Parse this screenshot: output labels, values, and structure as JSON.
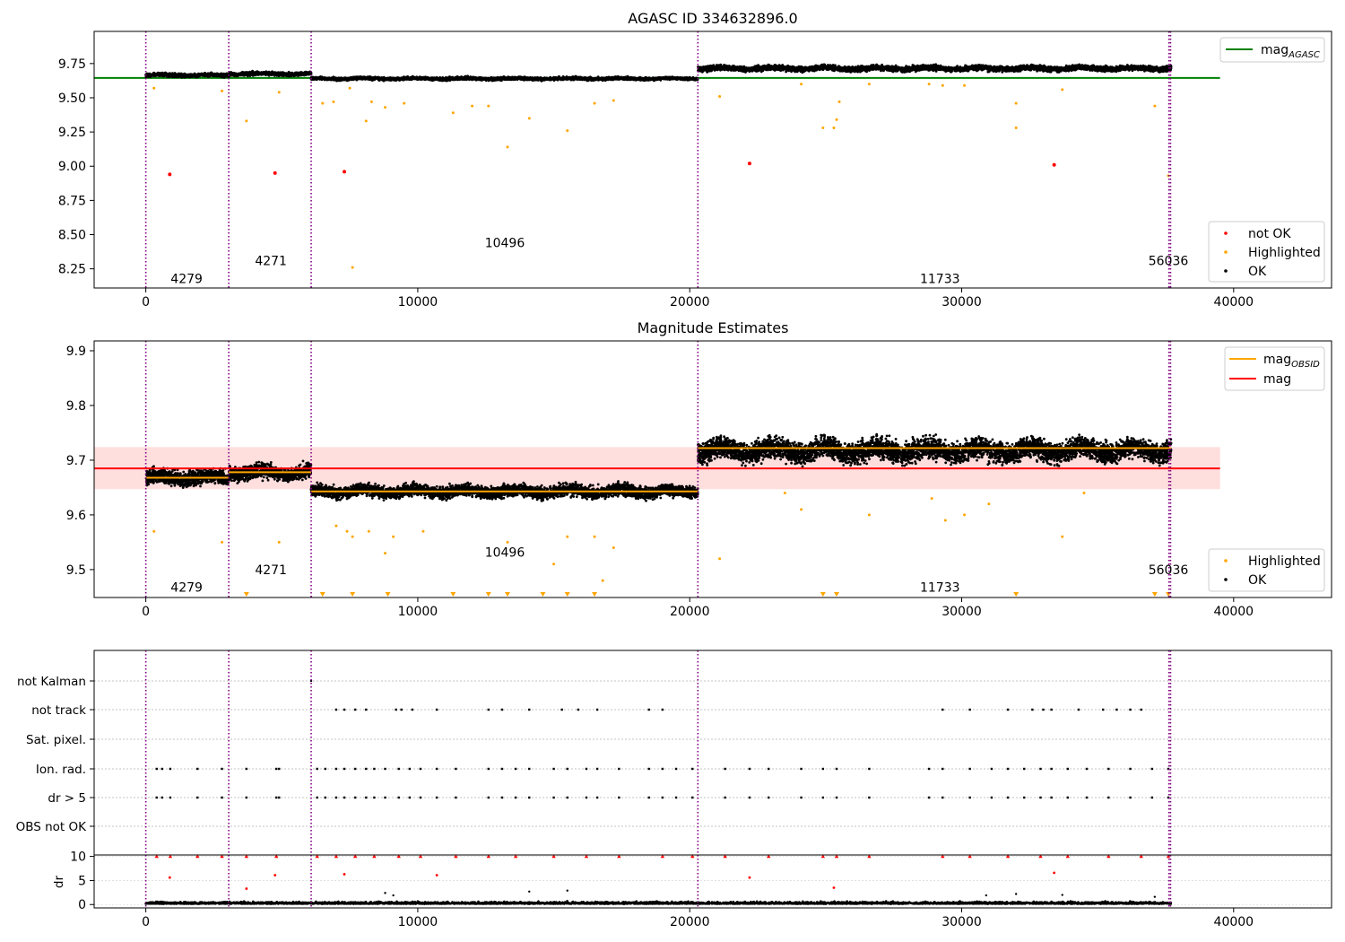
{
  "chart_data": [
    {
      "type": "scatter",
      "title": "AGASC ID 334632896.0",
      "xlim": [
        -1900,
        43600
      ],
      "ylim": [
        8.11,
        9.985
      ],
      "x_ticks": [
        0,
        10000,
        20000,
        30000,
        40000
      ],
      "y_ticks": [
        "8.25",
        "8.50",
        "8.75",
        "9.00",
        "9.25",
        "9.50",
        "9.75"
      ],
      "obs_boundaries": [
        0,
        3050,
        6080,
        20300,
        37620,
        37680
      ],
      "obs_labels": [
        {
          "label": "4279",
          "x": 1500,
          "y": 8.18
        },
        {
          "label": "4271",
          "x": 4600,
          "y": 8.31
        },
        {
          "label": "10496",
          "x": 13200,
          "y": 8.44
        },
        {
          "label": "11733",
          "x": 29200,
          "y": 8.18
        },
        {
          "label": "56036",
          "x": 37600,
          "y": 8.31
        }
      ],
      "lines": [
        {
          "name": "mag_AGASC",
          "color": "#008000",
          "x": [
            -1900,
            39500
          ],
          "y": 9.645
        }
      ],
      "segments": [
        {
          "x0": 0,
          "x1": 3050,
          "level": 9.665,
          "spread": 0.012
        },
        {
          "x0": 3050,
          "x1": 6080,
          "level": 9.675,
          "spread": 0.012
        },
        {
          "x0": 6080,
          "x1": 20300,
          "level": 9.64,
          "spread": 0.01
        },
        {
          "x0": 20300,
          "x1": 37700,
          "level": 9.715,
          "spread": 0.018
        }
      ],
      "not_ok_points": [
        [
          880,
          8.94
        ],
        [
          4750,
          8.95
        ],
        [
          7300,
          8.96
        ],
        [
          22200,
          9.02
        ],
        [
          33400,
          9.01
        ]
      ],
      "highlighted_outliers": [
        [
          300,
          9.57
        ],
        [
          2800,
          9.55
        ],
        [
          3700,
          9.33
        ],
        [
          4900,
          9.54
        ],
        [
          6500,
          9.46
        ],
        [
          6900,
          9.47
        ],
        [
          7500,
          9.57
        ],
        [
          8100,
          9.33
        ],
        [
          8300,
          9.47
        ],
        [
          8800,
          9.43
        ],
        [
          9500,
          9.46
        ],
        [
          11300,
          9.39
        ],
        [
          12000,
          9.44
        ],
        [
          12600,
          9.44
        ],
        [
          13300,
          9.14
        ],
        [
          14100,
          9.35
        ],
        [
          15500,
          9.26
        ],
        [
          16500,
          9.46
        ],
        [
          17200,
          9.48
        ],
        [
          7600,
          8.26
        ],
        [
          21100,
          9.51
        ],
        [
          24100,
          9.6
        ],
        [
          24900,
          9.28
        ],
        [
          25300,
          9.28
        ],
        [
          25400,
          9.34
        ],
        [
          25500,
          9.47
        ],
        [
          26600,
          9.6
        ],
        [
          28800,
          9.6
        ],
        [
          29300,
          9.59
        ],
        [
          30100,
          9.59
        ],
        [
          32000,
          9.46
        ],
        [
          32000,
          9.28
        ],
        [
          33700,
          9.56
        ],
        [
          37100,
          9.44
        ],
        [
          37600,
          8.93
        ]
      ],
      "legend": [
        {
          "label": "mag_AGASC",
          "main": "mag",
          "sub": "AGASC",
          "color": "#008000",
          "kind": "line"
        },
        {
          "label": "not OK",
          "color": "#ff0000",
          "kind": "dot"
        },
        {
          "label": "Highlighted",
          "color": "#ffa500",
          "kind": "dot"
        },
        {
          "label": "OK",
          "color": "#000000",
          "kind": "dot"
        }
      ]
    },
    {
      "type": "scatter",
      "title": "Magnitude Estimates",
      "xlim": [
        -1900,
        43600
      ],
      "ylim": [
        9.449,
        9.918
      ],
      "x_ticks": [
        0,
        10000,
        20000,
        30000,
        40000
      ],
      "y_ticks": [
        "9.5",
        "9.6",
        "9.7",
        "9.8",
        "9.9"
      ],
      "obs_boundaries": [
        0,
        3050,
        6080,
        20300,
        37620,
        37680
      ],
      "obs_labels": [
        {
          "label": "4279",
          "x": 1500,
          "y": 9.468
        },
        {
          "label": "4271",
          "x": 4600,
          "y": 9.5
        },
        {
          "label": "10496",
          "x": 13200,
          "y": 9.532
        },
        {
          "label": "11733",
          "x": 29200,
          "y": 9.468
        },
        {
          "label": "56036",
          "x": 37600,
          "y": 9.5
        }
      ],
      "mag_line": {
        "name": "mag",
        "color": "#ff0000",
        "value": 9.685,
        "band": [
          9.647,
          9.724
        ],
        "x": [
          -1900,
          39500
        ]
      },
      "obsid_mags": [
        {
          "x0": 0,
          "x1": 3050,
          "value": 9.668
        },
        {
          "x0": 3050,
          "x1": 6080,
          "value": 9.678
        },
        {
          "x0": 6080,
          "x1": 20300,
          "value": 9.643
        },
        {
          "x0": 20300,
          "x1": 37700,
          "value": 9.722
        }
      ],
      "segments": [
        {
          "x0": 0,
          "x1": 3050,
          "level": 9.668,
          "spread": 0.012
        },
        {
          "x0": 3050,
          "x1": 6080,
          "level": 9.678,
          "spread": 0.012
        },
        {
          "x0": 6080,
          "x1": 20300,
          "level": 9.643,
          "spread": 0.01
        },
        {
          "x0": 20300,
          "x1": 37700,
          "level": 9.718,
          "spread": 0.018
        }
      ],
      "highlighted_outliers": [
        [
          300,
          9.57
        ],
        [
          2800,
          9.55
        ],
        [
          4900,
          9.55
        ],
        [
          7000,
          9.58
        ],
        [
          7400,
          9.57
        ],
        [
          7600,
          9.56
        ],
        [
          8200,
          9.57
        ],
        [
          8800,
          9.53
        ],
        [
          9100,
          9.56
        ],
        [
          10200,
          9.57
        ],
        [
          13300,
          9.55
        ],
        [
          15000,
          9.51
        ],
        [
          15500,
          9.56
        ],
        [
          16500,
          9.56
        ],
        [
          17200,
          9.54
        ],
        [
          16800,
          9.48
        ],
        [
          21100,
          9.52
        ],
        [
          23500,
          9.64
        ],
        [
          24100,
          9.61
        ],
        [
          26600,
          9.6
        ],
        [
          28900,
          9.63
        ],
        [
          29400,
          9.59
        ],
        [
          30100,
          9.6
        ],
        [
          31000,
          9.62
        ],
        [
          33700,
          9.56
        ],
        [
          34500,
          9.64
        ],
        [
          3700,
          9.452
        ],
        [
          6500,
          9.452
        ],
        [
          7600,
          9.452
        ],
        [
          8900,
          9.452
        ],
        [
          11300,
          9.452
        ],
        [
          12600,
          9.452
        ],
        [
          13300,
          9.452
        ],
        [
          14600,
          9.452
        ],
        [
          15500,
          9.452
        ],
        [
          16500,
          9.452
        ],
        [
          24900,
          9.452
        ],
        [
          25400,
          9.452
        ],
        [
          32000,
          9.452
        ],
        [
          37100,
          9.452
        ],
        [
          37600,
          9.452
        ]
      ],
      "legend": [
        {
          "label": "mag_OBSID",
          "main": "mag",
          "sub": "OBSID",
          "color": "#ffa500",
          "kind": "line"
        },
        {
          "label": "mag",
          "color": "#ff0000",
          "kind": "line"
        },
        {
          "label": "Highlighted",
          "color": "#ffa500",
          "kind": "dot"
        },
        {
          "label": "OK",
          "color": "#000000",
          "kind": "dot"
        }
      ]
    },
    {
      "type": "scatter",
      "title": "",
      "xlim": [
        -1900,
        43600
      ],
      "categories": [
        "not Kalman",
        "not track",
        "Sat. pixel.",
        "Ion. rad.",
        "dr > 5",
        "OBS not OK"
      ],
      "obs_boundaries": [
        0,
        3050,
        6080,
        20300,
        37620,
        37680
      ],
      "flag_points": {
        "not track": [
          7000,
          7300,
          7700,
          8100,
          9200,
          9400,
          9800,
          10700,
          12600,
          13100,
          14100,
          15300,
          15900,
          16600,
          18500,
          19000,
          29300,
          30300,
          31700,
          32600,
          33000,
          33300,
          34300,
          35200,
          35700,
          36200,
          36600
        ],
        "Ion. rad.": [
          400,
          600,
          900,
          1900,
          2800,
          3700,
          4800,
          4900,
          6300,
          6600,
          7000,
          7300,
          7700,
          8100,
          8400,
          8800,
          9300,
          9700,
          10100,
          10700,
          11400,
          12600,
          13100,
          13600,
          14100,
          15000,
          15500,
          16200,
          16600,
          17400,
          18500,
          19000,
          19500,
          20100,
          21300,
          22200,
          22900,
          24100,
          24900,
          25400,
          26600,
          28800,
          29300,
          30300,
          31100,
          31700,
          32300,
          32900,
          33300,
          33900,
          34600,
          35400,
          36200,
          37000,
          37600
        ],
        "dr > 5": [
          400,
          600,
          900,
          1900,
          2800,
          3700,
          4800,
          4900,
          6300,
          6600,
          7000,
          7300,
          7700,
          8100,
          8400,
          8800,
          9300,
          9700,
          10100,
          10700,
          11400,
          12600,
          13100,
          13600,
          14100,
          15000,
          15500,
          16200,
          16600,
          17400,
          18500,
          19000,
          19500,
          20100,
          21300,
          22200,
          22900,
          24100,
          24900,
          25400,
          26600,
          28800,
          29300,
          30300,
          31100,
          31700,
          32300,
          32900,
          33300,
          33900,
          34600,
          35400,
          36200,
          37000,
          37600
        ]
      },
      "dr_panel": {
        "ylabel": "dr",
        "y_ticks": [
          "0",
          "5",
          "10"
        ],
        "ylim": [
          -0.7,
          10.3
        ],
        "clip_value": 10,
        "red_points": [
          [
            400,
            10
          ],
          [
            900,
            10
          ],
          [
            1900,
            10
          ],
          [
            2800,
            10
          ],
          [
            3700,
            10
          ],
          [
            4800,
            10
          ],
          [
            6300,
            10
          ],
          [
            7000,
            10
          ],
          [
            7700,
            10
          ],
          [
            8400,
            10
          ],
          [
            9300,
            10
          ],
          [
            10100,
            10
          ],
          [
            11400,
            10
          ],
          [
            12600,
            10
          ],
          [
            13600,
            10
          ],
          [
            15000,
            10
          ],
          [
            16200,
            10
          ],
          [
            17400,
            10
          ],
          [
            19000,
            10
          ],
          [
            20100,
            10
          ],
          [
            21300,
            10
          ],
          [
            22900,
            10
          ],
          [
            24900,
            10
          ],
          [
            25400,
            10
          ],
          [
            26600,
            10
          ],
          [
            29300,
            10
          ],
          [
            30300,
            10
          ],
          [
            31700,
            10
          ],
          [
            32900,
            10
          ],
          [
            33900,
            10
          ],
          [
            35400,
            10
          ],
          [
            36600,
            10
          ],
          [
            37600,
            10
          ],
          [
            880,
            5.6
          ],
          [
            3700,
            3.3
          ],
          [
            4750,
            6.1
          ],
          [
            7300,
            6.3
          ],
          [
            10700,
            6.1
          ],
          [
            22200,
            5.6
          ],
          [
            25300,
            3.5
          ],
          [
            33400,
            6.6
          ]
        ],
        "black_points": [
          [
            8800,
            2.4
          ],
          [
            9100,
            1.9
          ],
          [
            14100,
            2.7
          ],
          [
            15500,
            2.9
          ],
          [
            30900,
            1.9
          ],
          [
            32000,
            2.2
          ],
          [
            33700,
            2.0
          ],
          [
            37100,
            1.6
          ]
        ]
      }
    }
  ]
}
